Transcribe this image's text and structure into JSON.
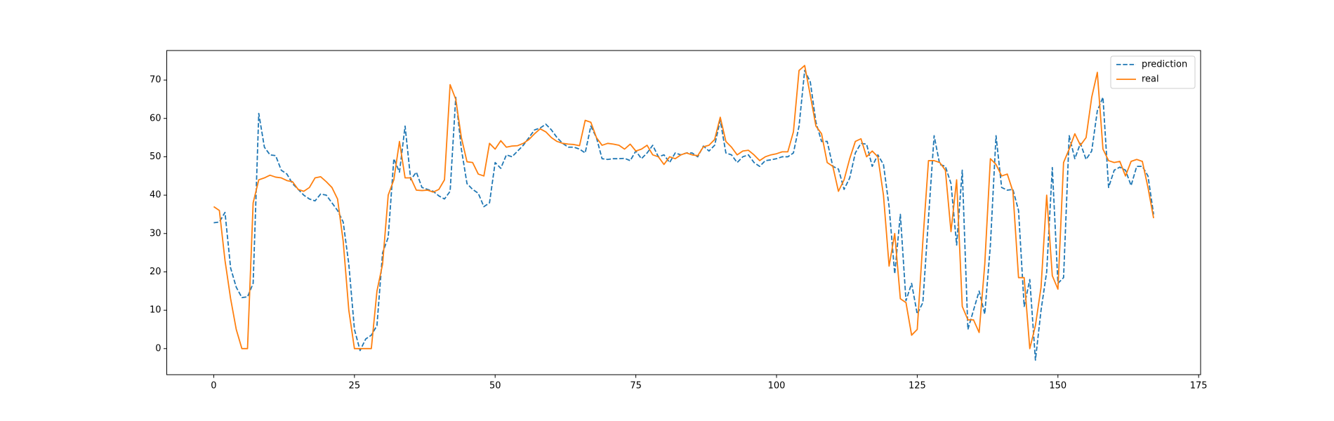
{
  "chart_data": {
    "type": "line",
    "x": [
      0,
      1,
      2,
      3,
      4,
      5,
      6,
      7,
      8,
      9,
      10,
      11,
      12,
      13,
      14,
      15,
      16,
      17,
      18,
      19,
      20,
      21,
      22,
      23,
      24,
      25,
      26,
      27,
      28,
      29,
      30,
      31,
      32,
      33,
      34,
      35,
      36,
      37,
      38,
      39,
      40,
      41,
      42,
      43,
      44,
      45,
      46,
      47,
      48,
      49,
      50,
      51,
      52,
      53,
      54,
      55,
      56,
      57,
      58,
      59,
      60,
      61,
      62,
      63,
      64,
      65,
      66,
      67,
      68,
      69,
      70,
      71,
      72,
      73,
      74,
      75,
      76,
      77,
      78,
      79,
      80,
      81,
      82,
      83,
      84,
      85,
      86,
      87,
      88,
      89,
      90,
      91,
      92,
      93,
      94,
      95,
      96,
      97,
      98,
      99,
      100,
      101,
      102,
      103,
      104,
      105,
      106,
      107,
      108,
      109,
      110,
      111,
      112,
      113,
      114,
      115,
      116,
      117,
      118,
      119,
      120,
      121,
      122,
      123,
      124,
      125,
      126,
      127,
      128,
      129,
      130,
      131,
      132,
      133,
      134,
      135,
      136,
      137,
      138,
      139,
      140,
      141,
      142,
      143,
      144,
      145,
      146,
      147,
      148,
      149,
      150,
      151,
      152,
      153,
      154,
      155,
      156,
      157,
      158,
      159,
      160,
      161,
      162,
      163,
      164,
      165,
      166,
      167
    ],
    "series": [
      {
        "name": "prediction",
        "color": "#1f77b4",
        "linestyle": "dashed",
        "values": [
          32.8,
          33,
          35.5,
          21,
          16,
          13.3,
          13.5,
          17,
          61.3,
          52.5,
          50.5,
          50.3,
          46.5,
          45.5,
          43,
          41.5,
          40,
          39,
          38.5,
          40.3,
          40,
          38,
          36,
          33,
          22,
          5,
          -0.5,
          2.5,
          3.5,
          6,
          25,
          29,
          49.5,
          46,
          58,
          44,
          46,
          42,
          41.5,
          41,
          39.8,
          39,
          41,
          65.5,
          52,
          43,
          41.5,
          40.5,
          37,
          38,
          48.5,
          47,
          50.5,
          50,
          51.5,
          53,
          55,
          57,
          57.5,
          58.5,
          57,
          55,
          53.5,
          52.5,
          52.5,
          52,
          51,
          58,
          55,
          49.5,
          49.3,
          49.5,
          49.5,
          49.6,
          49,
          51.5,
          49.5,
          51,
          53,
          50,
          50.5,
          48.5,
          51,
          50.5,
          51,
          51,
          50,
          52.8,
          51.5,
          53,
          59.5,
          51,
          50.5,
          48.5,
          50,
          50.5,
          48.5,
          47.5,
          49,
          49.2,
          49.5,
          50,
          50,
          51,
          58,
          72.5,
          69.5,
          59,
          54,
          54,
          47.5,
          46.8,
          41.5,
          44.5,
          51,
          53.5,
          53.3,
          47.5,
          50.5,
          48,
          37,
          19.5,
          35,
          12.5,
          17,
          9,
          12,
          34,
          55.5,
          48,
          47.5,
          43,
          27,
          46.5,
          5,
          10,
          15,
          9,
          27,
          55.5,
          42,
          41.3,
          41.5,
          36,
          11,
          18,
          -3,
          10,
          20,
          47.2,
          17,
          18.5,
          55.5,
          49.5,
          53.5,
          49.3,
          51.5,
          62,
          65.5,
          42,
          46.5,
          47.3,
          46.5,
          42.5,
          47.5,
          47.5,
          45,
          35
        ]
      },
      {
        "name": "real",
        "color": "#ff7f0e",
        "linestyle": "solid",
        "values": [
          37,
          36,
          23,
          13,
          5,
          0,
          0,
          38,
          44,
          44.5,
          45.2,
          44.7,
          44.5,
          43.8,
          43.5,
          41.5,
          41,
          42,
          44.5,
          44.8,
          43.5,
          42,
          39,
          28,
          10,
          0,
          0,
          0,
          0,
          15,
          22,
          40,
          44,
          54,
          44.5,
          44.5,
          41.3,
          41.2,
          41.3,
          40.8,
          41.5,
          44,
          68.8,
          65,
          55,
          48.7,
          48.5,
          45.5,
          45,
          53.5,
          52,
          54.2,
          52.5,
          52.8,
          52.9,
          53.5,
          54.5,
          56,
          57.3,
          56.5,
          55,
          54,
          53.5,
          53.3,
          53.2,
          52.9,
          59.5,
          59,
          55,
          53,
          53.5,
          53.3,
          53,
          52,
          53.3,
          51.5,
          52,
          53,
          50.5,
          50,
          48,
          50,
          49.5,
          50.5,
          51,
          50.5,
          50.3,
          52.6,
          53,
          54.5,
          60.3,
          54,
          52.5,
          50.5,
          51.5,
          51.7,
          50.5,
          49,
          50,
          50.5,
          50.8,
          51.3,
          51.3,
          56.5,
          72.5,
          73.8,
          66,
          58,
          56,
          48.5,
          47.5,
          41,
          44,
          49.5,
          54,
          54.7,
          50,
          51.5,
          50,
          40,
          21.5,
          30,
          13,
          12,
          3.5,
          5,
          28,
          49,
          49,
          48.5,
          46.5,
          30.5,
          44,
          11,
          7.5,
          7.5,
          4.2,
          22,
          49.5,
          48,
          45,
          45.5,
          41,
          18.5,
          18.5,
          0,
          6,
          16,
          40,
          19,
          15.5,
          48.5,
          52,
          56,
          53,
          55,
          65.5,
          72,
          52,
          49,
          48.5,
          48.8,
          45,
          48.8,
          49.3,
          48.8,
          42,
          34
        ]
      }
    ],
    "xlim": [
      -8.35,
      175.35
    ],
    "xticks": [
      0,
      25,
      50,
      75,
      100,
      125,
      150,
      175
    ],
    "ylim": [
      -6.8,
      77.7
    ],
    "yticks": [
      0,
      10,
      20,
      30,
      40,
      50,
      60,
      70
    ],
    "legend": "upper right"
  }
}
